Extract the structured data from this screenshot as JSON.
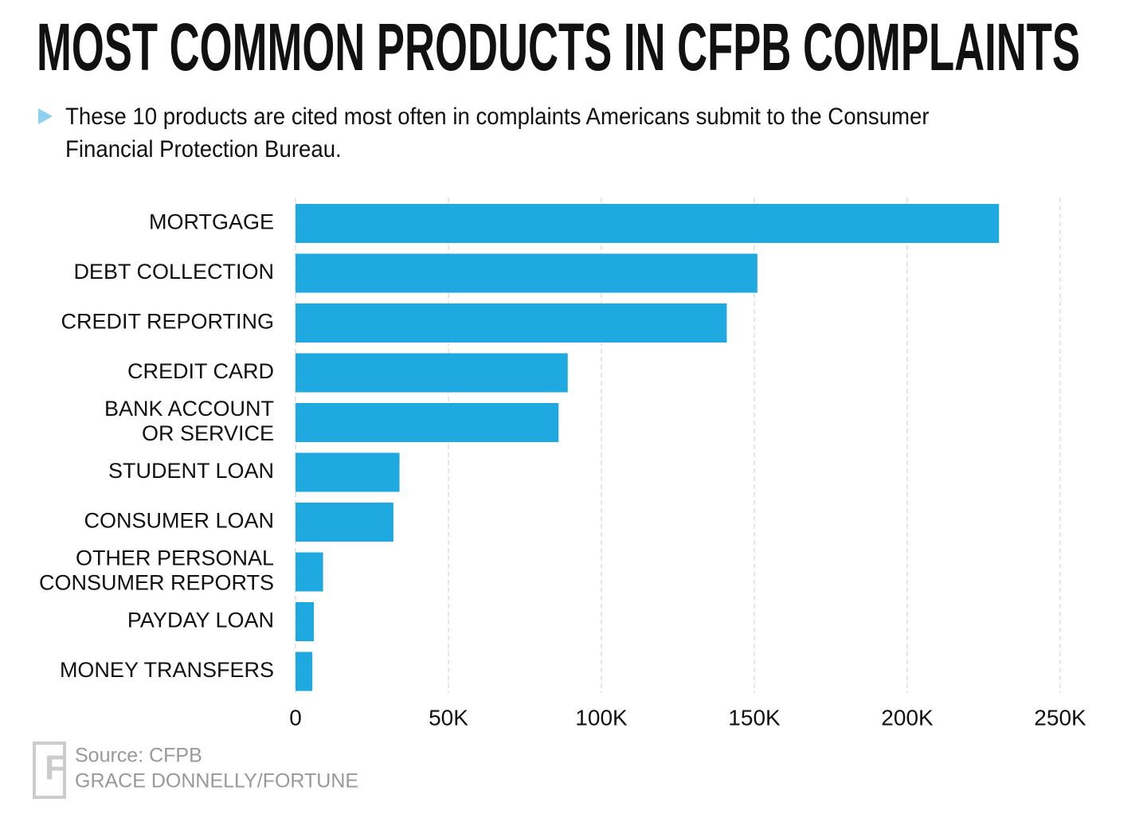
{
  "chart_data": {
    "type": "bar",
    "orientation": "horizontal",
    "title": "MOST COMMON PRODUCTS IN CFPB COMPLAINTS",
    "subtitle": "These 10 products are cited most often in complaints Americans submit to the Consumer Financial Protection Bureau.",
    "categories": [
      "MORTGAGE",
      "DEBT COLLECTION",
      "CREDIT REPORTING",
      "CREDIT CARD",
      "BANK ACCOUNT\nOR SERVICE",
      "STUDENT LOAN",
      "CONSUMER LOAN",
      "OTHER PERSONAL\nCONSUMER REPORTS",
      "PAYDAY LOAN",
      "MONEY TRANSFERS"
    ],
    "values": [
      230000,
      151000,
      141000,
      89000,
      86000,
      34000,
      32000,
      9000,
      6000,
      5500
    ],
    "color": "#1ea9e1",
    "xlim": [
      0,
      250000
    ],
    "xticks": [
      0,
      {
        "value": 50000,
        "label": "50K"
      },
      {
        "value": 100000,
        "label": "100K"
      },
      {
        "value": 150000,
        "label": "150K"
      },
      {
        "value": 200000,
        "label": "200K"
      },
      {
        "value": 250000,
        "label": "250K"
      }
    ],
    "grid": true,
    "source": "Source: CFPB",
    "credit": "GRACE DONNELLY/FORTUNE"
  }
}
